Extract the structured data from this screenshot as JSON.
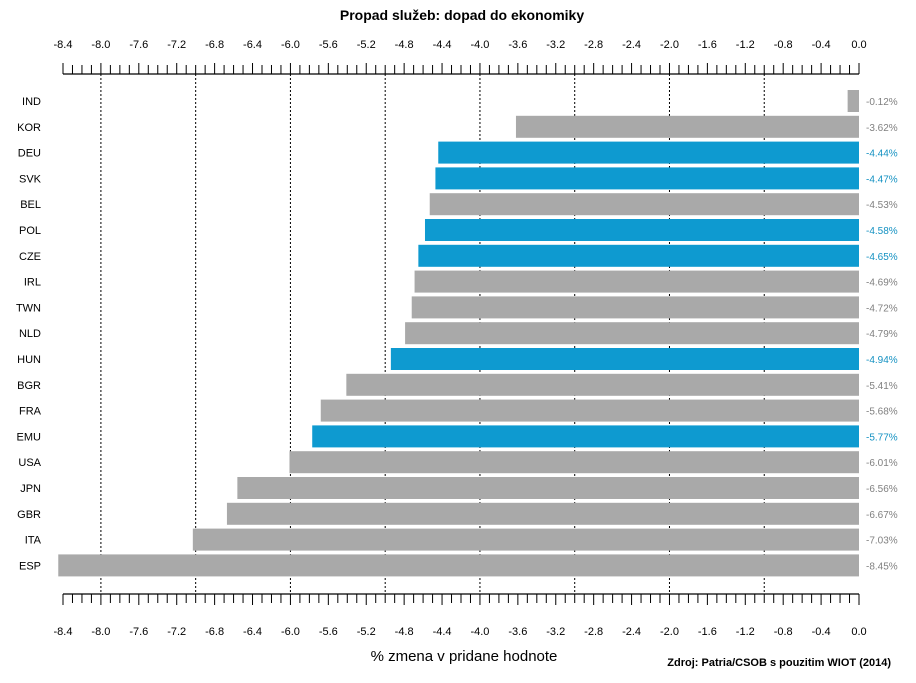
{
  "chart_data": {
    "type": "bar",
    "orientation": "horizontal",
    "title": "Propad služeb: dopad do ekonomiky",
    "xlabel": "% zmena v pridane hodnote",
    "source": "Zdroj: Patria/CSOB s pouzitim WIOT (2014)",
    "xlim": [
      -8.4,
      0.0
    ],
    "ticks": [
      "-8.4",
      "-8.0",
      "-7.6",
      "-7.2",
      "-6.8",
      "-6.4",
      "-6.0",
      "-5.6",
      "-5.2",
      "-4.8",
      "-4.4",
      "-4.0",
      "-3.6",
      "-3.2",
      "-2.8",
      "-2.4",
      "-2.0",
      "-1.6",
      "-1.2",
      "-0.8",
      "-0.4",
      "0.0"
    ],
    "tick_values": [
      -8.4,
      -8.0,
      -7.6,
      -7.2,
      -6.8,
      -6.4,
      -6.0,
      -5.6,
      -5.2,
      -4.8,
      -4.4,
      -4.0,
      -3.6,
      -3.2,
      -2.8,
      -2.4,
      -2.0,
      -1.6,
      -1.2,
      -0.8,
      -0.4,
      0.0
    ],
    "gridlines": [
      -8.0,
      -7.0,
      -6.0,
      -5.0,
      -4.0,
      -3.0,
      -2.0,
      -1.0
    ],
    "categories": [
      "IND",
      "KOR",
      "DEU",
      "SVK",
      "BEL",
      "POL",
      "CZE",
      "IRL",
      "TWN",
      "NLD",
      "HUN",
      "BGR",
      "FRA",
      "EMU",
      "USA",
      "JPN",
      "GBR",
      "ITA",
      "ESP"
    ],
    "values": [
      -0.12,
      -3.62,
      -4.44,
      -4.47,
      -4.53,
      -4.58,
      -4.65,
      -4.69,
      -4.72,
      -4.79,
      -4.94,
      -5.41,
      -5.68,
      -5.77,
      -6.01,
      -6.56,
      -6.67,
      -7.03,
      -8.45
    ],
    "value_labels": [
      "-0.12%",
      "-3.62%",
      "-4.44%",
      "-4.47%",
      "-4.53%",
      "-4.58%",
      "-4.65%",
      "-4.69%",
      "-4.72%",
      "-4.79%",
      "-4.94%",
      "-5.41%",
      "-5.68%",
      "-5.77%",
      "-6.01%",
      "-6.56%",
      "-6.67%",
      "-7.03%",
      "-8.45%"
    ],
    "highlighted": [
      false,
      false,
      true,
      true,
      false,
      true,
      true,
      false,
      false,
      false,
      true,
      false,
      false,
      true,
      false,
      false,
      false,
      false,
      false
    ],
    "colors": {
      "default": "#a9a9a9",
      "highlight": "#0e9ad0",
      "default_label": "#808080",
      "highlight_label": "#1391c2"
    }
  }
}
